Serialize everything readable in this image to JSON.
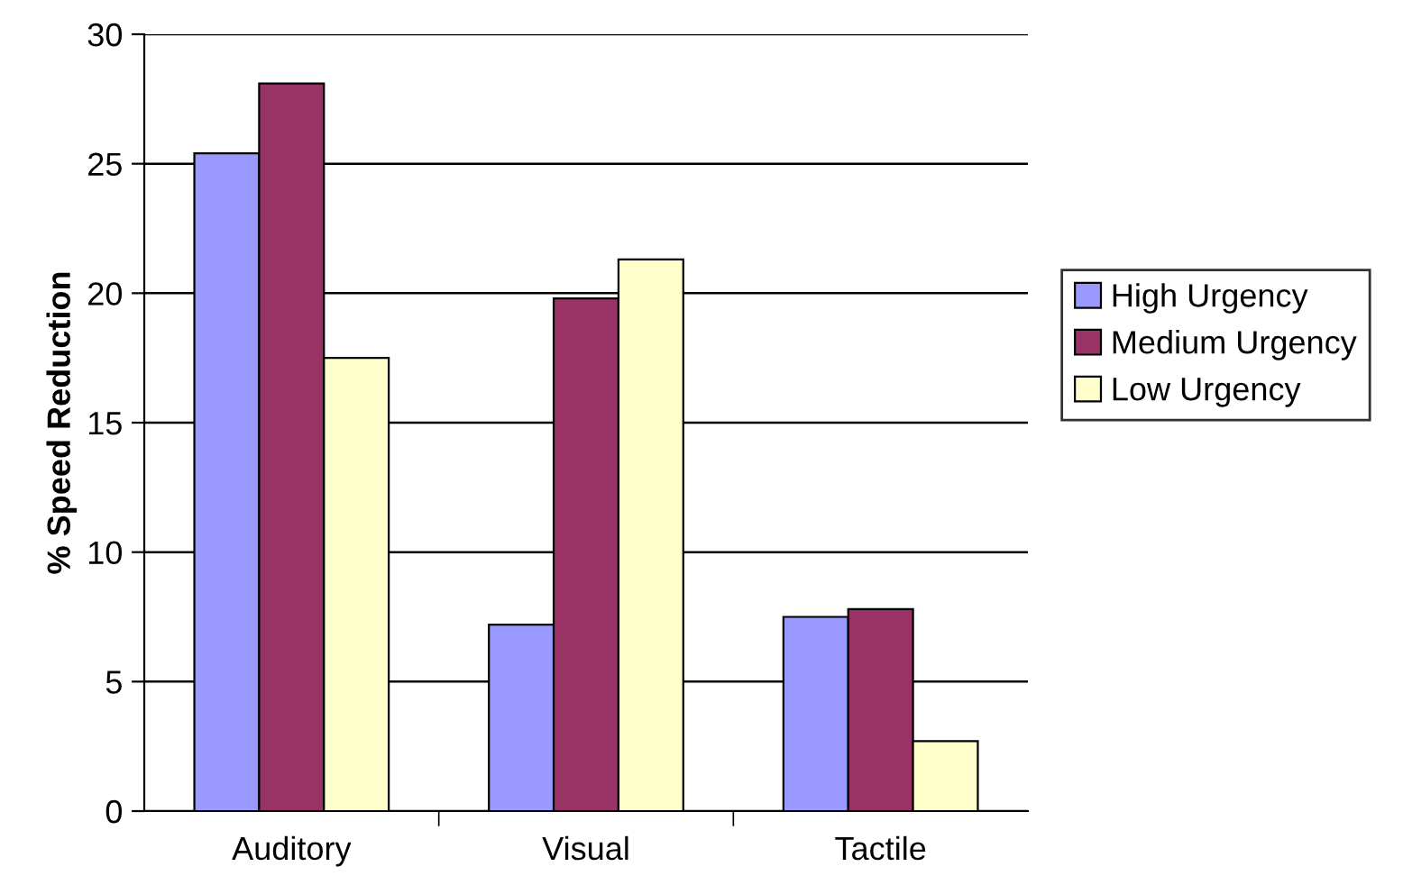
{
  "chart_data": {
    "type": "bar",
    "ylabel": "% Speed Reduction",
    "categories": [
      "Auditory",
      "Visual",
      "Tactile"
    ],
    "series": [
      {
        "name": "High Urgency",
        "color": "#9999ff",
        "values": [
          25.4,
          7.2,
          7.5
        ]
      },
      {
        "name": "Medium Urgency",
        "color": "#993366",
        "values": [
          28.1,
          19.8,
          7.8
        ]
      },
      {
        "name": "Low Urgency",
        "color": "#ffffcc",
        "values": [
          17.5,
          21.3,
          2.7
        ]
      }
    ],
    "ylim": [
      0,
      30
    ],
    "yticks": [
      0,
      5,
      10,
      15,
      20,
      25,
      30
    ],
    "grid": "y",
    "legend": "right"
  }
}
